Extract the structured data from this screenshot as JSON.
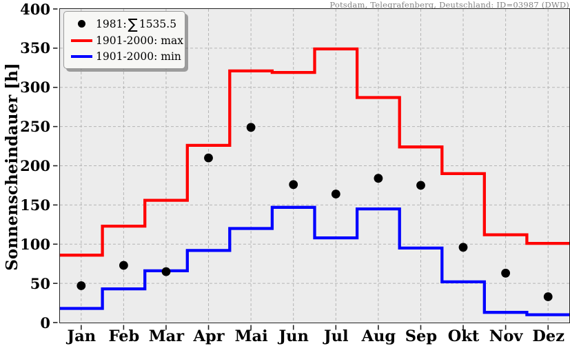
{
  "header": {
    "station_title": "Potsdam, Telegrafenberg, Deutschland: ID=03987 (DWD)"
  },
  "axes": {
    "ylabel": "Sonnenscheindauer [h]"
  },
  "legend": {
    "year_prefix": "1981:",
    "sum_symbol": "∑",
    "sum_value": "1535.5",
    "max_label": "1901-2000: max",
    "min_label": "1901-2000: min",
    "position": "top-left"
  },
  "colors": {
    "max_line": "#ff0000",
    "min_line": "#0000ff",
    "dots": "#000000",
    "plot_background": "#ececec",
    "grid": "#b4b4b4",
    "axis": "#222222",
    "title_text": "#848484"
  },
  "chart_data": {
    "type": "line",
    "subtype": "step-lines (monthly climatology band) with scatter dots for year 1981",
    "title": "Potsdam, Telegrafenberg, Deutschland: ID=03987 (DWD)",
    "ylabel": "Sonnenscheindauer [h]",
    "xlabel": "",
    "categories": [
      "Jan",
      "Feb",
      "Mar",
      "Apr",
      "Mai",
      "Jun",
      "Jul",
      "Aug",
      "Sep",
      "Okt",
      "Nov",
      "Dez"
    ],
    "series": [
      {
        "name": "1981",
        "type": "scatter",
        "color": "#000000",
        "sum": 1535.5,
        "values": [
          47,
          73,
          65,
          210,
          249,
          176,
          164,
          184,
          175,
          96,
          63,
          33
        ]
      },
      {
        "name": "1901-2000: max",
        "type": "step",
        "color": "#ff0000",
        "values": [
          86,
          123,
          156,
          226,
          321,
          319,
          349,
          287,
          224,
          190,
          112,
          101
        ]
      },
      {
        "name": "1901-2000: min",
        "type": "step",
        "color": "#0000ff",
        "values": [
          18,
          43,
          66,
          92,
          120,
          147,
          108,
          145,
          95,
          52,
          13,
          10
        ]
      }
    ],
    "ylim": [
      0,
      400
    ],
    "ytick_step": 50,
    "yticks": [
      "0",
      "50",
      "100",
      "150",
      "200",
      "250",
      "300",
      "350",
      "400"
    ],
    "grid": true,
    "legend_position": "top-left"
  }
}
